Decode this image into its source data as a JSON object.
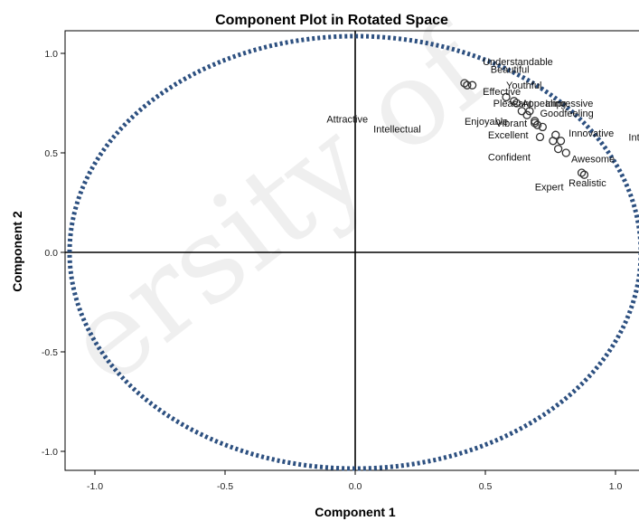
{
  "chart_data": {
    "type": "scatter",
    "title": "Component Plot in Rotated Space",
    "xlabel": "Component 1",
    "ylabel": "Component 2",
    "xlim": [
      -1.1,
      1.1
    ],
    "ylim": [
      -1.1,
      1.1
    ],
    "x_ticks": [
      -1.0,
      -0.5,
      0.0,
      0.5,
      1.0
    ],
    "x_tick_labels": [
      "-1.0",
      "-0.5",
      "0.0",
      "0.5",
      "1.0"
    ],
    "y_ticks": [
      1.0,
      0.5,
      0.0,
      -0.5,
      -1.0
    ],
    "y_tick_labels": [
      "1.0",
      "0.5",
      "0.0",
      "-0.5",
      "-1.0"
    ],
    "grid": false,
    "reference_lines": [
      0,
      0
    ],
    "circle": {
      "cx": 0,
      "cy": 0,
      "r": 1.0,
      "style": "dotted",
      "color": "#2d5080"
    },
    "marker_color": "#333333",
    "points": [
      {
        "label": "Understandable",
        "x": 0.45,
        "y": 0.84
      },
      {
        "label": "Beautiful",
        "x": 0.42,
        "y": 0.85
      },
      {
        "label": "Youthful",
        "x": 0.43,
        "y": 0.84
      },
      {
        "label": "Effective",
        "x": 0.58,
        "y": 0.78
      },
      {
        "label": "Pleasant",
        "x": 0.61,
        "y": 0.76
      },
      {
        "label": "Appealing",
        "x": 0.62,
        "y": 0.75
      },
      {
        "label": "Impressive",
        "x": 0.64,
        "y": 0.71
      },
      {
        "label": "Enjoyable",
        "x": 0.66,
        "y": 0.69
      },
      {
        "label": "Goodfeeling",
        "x": 0.67,
        "y": 0.71
      },
      {
        "label": "Attractive",
        "x": 0.69,
        "y": 0.66
      },
      {
        "label": "Vibrant",
        "x": 0.72,
        "y": 0.63
      },
      {
        "label": "Innovative",
        "x": 0.77,
        "y": 0.59
      },
      {
        "label": "Intellectual",
        "x": 0.71,
        "y": 0.58
      },
      {
        "label": "Excellent",
        "x": 0.76,
        "y": 0.56
      },
      {
        "label": "Intelligent",
        "x": 0.79,
        "y": 0.56
      },
      {
        "label": "Confident",
        "x": 0.78,
        "y": 0.52
      },
      {
        "label": "Awesome",
        "x": 0.81,
        "y": 0.5
      },
      {
        "label": "Expert",
        "x": 0.88,
        "y": 0.39
      },
      {
        "label": "Realistic",
        "x": 0.87,
        "y": 0.4
      },
      {
        "label": "",
        "x": 0.69,
        "y": 0.65
      },
      {
        "label": "",
        "x": 0.7,
        "y": 0.64
      }
    ],
    "label_positions": [
      {
        "text": "Understandable",
        "anchor": "start",
        "dx": 0.04,
        "dy": 0.12
      },
      {
        "text": "Beautiful",
        "anchor": "start",
        "dx": 0.1,
        "dy": 0.07
      },
      {
        "text": "Youthful",
        "anchor": "start",
        "dx": 0.15,
        "dy": 0.0
      },
      {
        "text": "Effective",
        "anchor": "start",
        "dx": -0.09,
        "dy": 0.03
      },
      {
        "text": "Pleasant",
        "anchor": "start",
        "dx": -0.08,
        "dy": -0.01
      },
      {
        "text": "Appealing",
        "anchor": "start",
        "dx": 0.02,
        "dy": 0.0
      },
      {
        "text": "Impressive",
        "anchor": "start",
        "dx": 0.09,
        "dy": 0.04
      },
      {
        "text": "Enjoyable",
        "anchor": "start",
        "dx": -0.24,
        "dy": -0.03
      },
      {
        "text": "Goodfeeling",
        "anchor": "start",
        "dx": 0.04,
        "dy": -0.01
      },
      {
        "text": "Attractive",
        "anchor": "start",
        "dx": -0.8,
        "dy": 0.01
      },
      {
        "text": "Vibrant",
        "anchor": "start",
        "dx": -0.18,
        "dy": 0.02
      },
      {
        "text": "Innovative",
        "anchor": "start",
        "dx": 0.05,
        "dy": 0.01
      },
      {
        "text": "Intellectual",
        "anchor": "start",
        "dx": -0.64,
        "dy": 0.04
      },
      {
        "text": "Excellent",
        "anchor": "start",
        "dx": -0.25,
        "dy": 0.03
      },
      {
        "text": "Intelligent",
        "anchor": "start",
        "dx": 0.26,
        "dy": 0.02
      },
      {
        "text": "Confident",
        "anchor": "start",
        "dx": -0.27,
        "dy": -0.04
      },
      {
        "text": "Awesome",
        "anchor": "start",
        "dx": 0.02,
        "dy": -0.03
      },
      {
        "text": "Expert",
        "anchor": "start",
        "dx": -0.19,
        "dy": -0.06
      },
      {
        "text": "Realistic",
        "anchor": "start",
        "dx": -0.05,
        "dy": -0.05
      }
    ],
    "watermark": "ersity of"
  }
}
